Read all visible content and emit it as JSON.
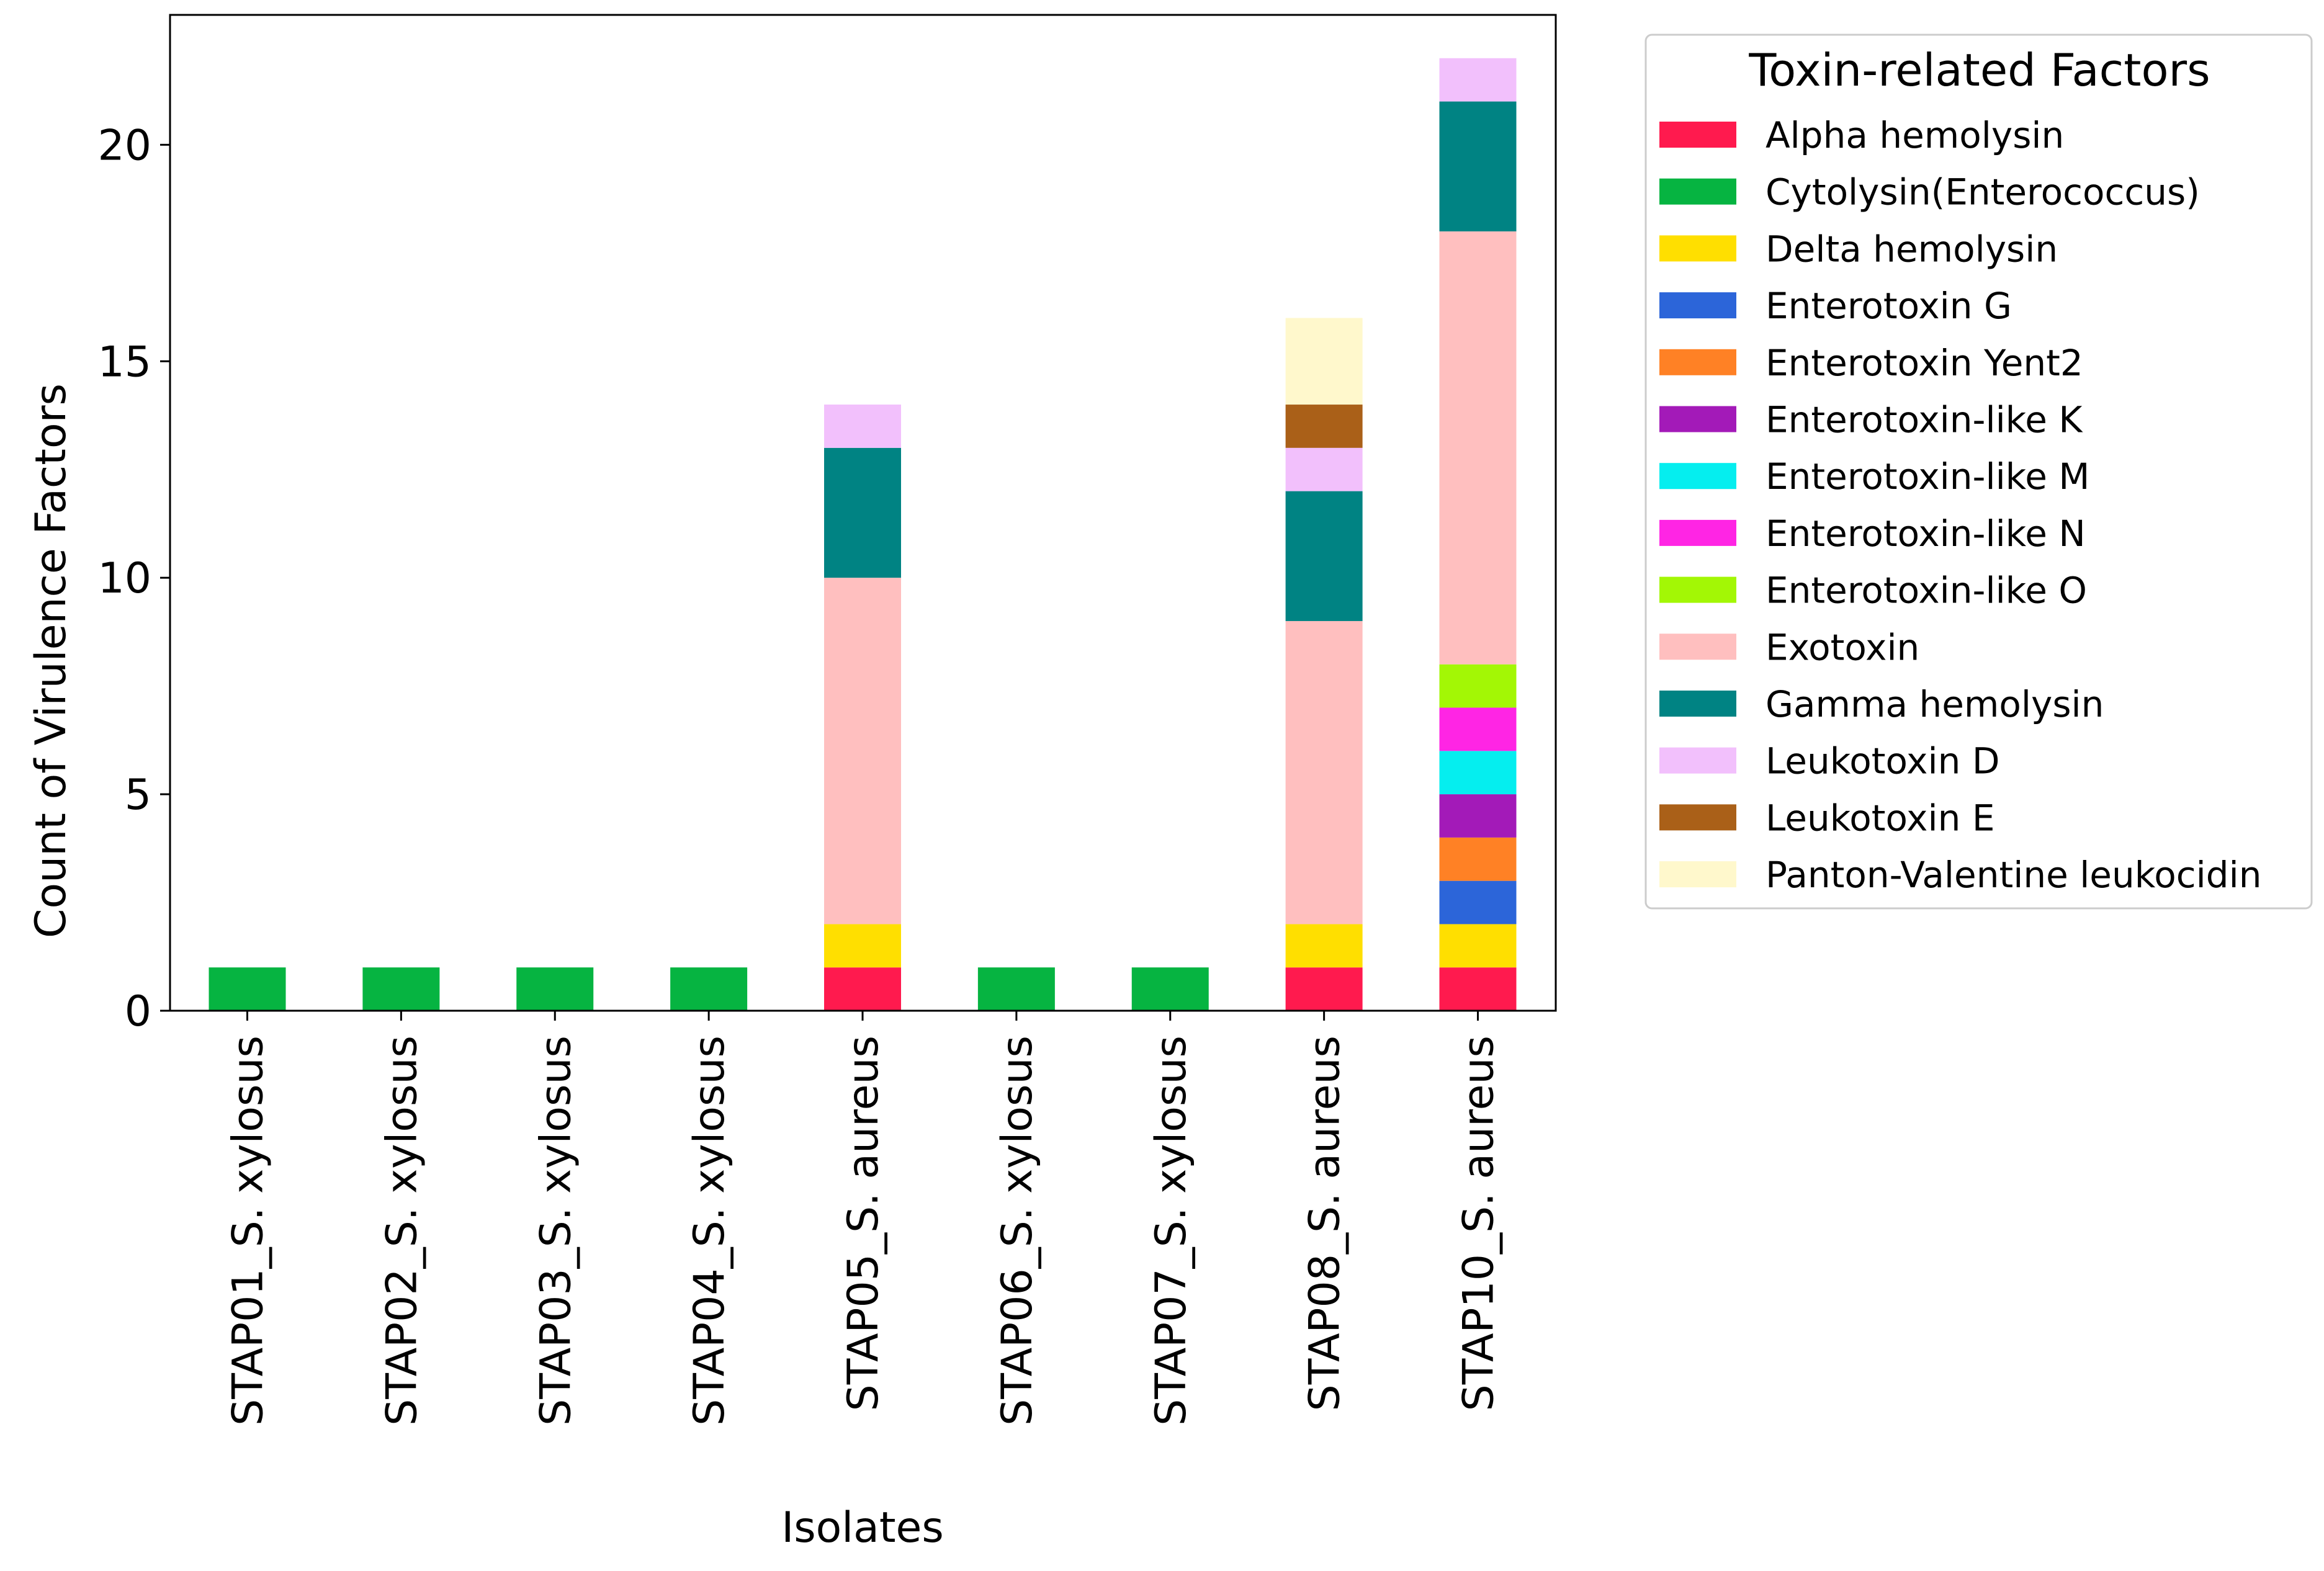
{
  "chart_data": {
    "type": "bar",
    "stacked": true,
    "title": "",
    "xlabel": "Isolates",
    "ylabel": "Count of Virulence Factors",
    "ylim": [
      0,
      23
    ],
    "yticks": [
      0,
      5,
      10,
      15,
      20
    ],
    "grid": false,
    "legend": {
      "title": "Toxin-related Factors",
      "placement": "outside-right"
    },
    "categories": [
      "STAP01_S. xylosus",
      "STAP02_S. xylosus",
      "STAP03_S. xylosus",
      "STAP04_S. xylosus",
      "STAP05_S. aureus",
      "STAP06_S. xylosus",
      "STAP07_S. xylosus",
      "STAP08_S. aureus",
      "STAP10_S. aureus"
    ],
    "series": [
      {
        "name": "Alpha hemolysin",
        "color": "#ff1a4e",
        "values": [
          0,
          0,
          0,
          0,
          1,
          0,
          0,
          1,
          1
        ]
      },
      {
        "name": "Cytolysin(Enterococcus)",
        "color": "#06b441",
        "values": [
          1,
          1,
          1,
          1,
          0,
          1,
          1,
          0,
          0
        ]
      },
      {
        "name": "Delta hemolysin",
        "color": "#ffdf00",
        "values": [
          0,
          0,
          0,
          0,
          1,
          0,
          0,
          1,
          1
        ]
      },
      {
        "name": "Enterotoxin G",
        "color": "#2c65d9",
        "values": [
          0,
          0,
          0,
          0,
          0,
          0,
          0,
          0,
          1
        ]
      },
      {
        "name": "Enterotoxin Yent2",
        "color": "#ff8125",
        "values": [
          0,
          0,
          0,
          0,
          0,
          0,
          0,
          0,
          1
        ]
      },
      {
        "name": "Enterotoxin-like K",
        "color": "#a31ab8",
        "values": [
          0,
          0,
          0,
          0,
          0,
          0,
          0,
          0,
          1
        ]
      },
      {
        "name": "Enterotoxin-like M",
        "color": "#05eeef",
        "values": [
          0,
          0,
          0,
          0,
          0,
          0,
          0,
          0,
          1
        ]
      },
      {
        "name": "Enterotoxin-like N",
        "color": "#ff25e4",
        "values": [
          0,
          0,
          0,
          0,
          0,
          0,
          0,
          0,
          1
        ]
      },
      {
        "name": "Enterotoxin-like O",
        "color": "#a3f705",
        "values": [
          0,
          0,
          0,
          0,
          0,
          0,
          0,
          0,
          1
        ]
      },
      {
        "name": "Exotoxin",
        "color": "#ffbfbf",
        "values": [
          0,
          0,
          0,
          0,
          8,
          0,
          0,
          7,
          10
        ]
      },
      {
        "name": "Gamma hemolysin",
        "color": "#008383",
        "values": [
          0,
          0,
          0,
          0,
          3,
          0,
          0,
          3,
          3
        ]
      },
      {
        "name": "Leukotoxin D",
        "color": "#f2c0fc",
        "values": [
          0,
          0,
          0,
          0,
          1,
          0,
          0,
          1,
          1
        ]
      },
      {
        "name": "Leukotoxin E",
        "color": "#aa6018",
        "values": [
          0,
          0,
          0,
          0,
          0,
          0,
          0,
          1,
          0
        ]
      },
      {
        "name": "Panton-Valentine leukocidin",
        "color": "#fff8cc",
        "values": [
          0,
          0,
          0,
          0,
          0,
          0,
          0,
          2,
          0
        ]
      }
    ]
  }
}
